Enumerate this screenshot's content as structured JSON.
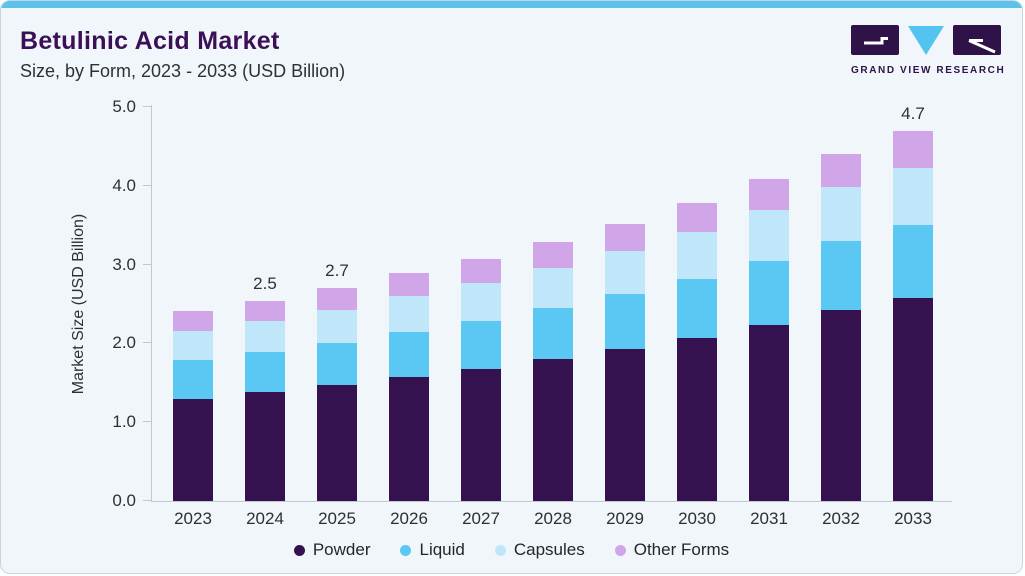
{
  "header": {
    "title": "Betulinic Acid Market",
    "subtitle": "Size, by Form, 2023 - 2033 (USD Billion)",
    "logo_text": "GRAND VIEW RESEARCH"
  },
  "colors": {
    "accent_strip": "#5cc1ec",
    "title_text": "#3b1056",
    "body_text": "#2e3133",
    "card_bg": "#f1f6fa",
    "card_border": "#c5d6e0",
    "axis_line": "#c2c8cf",
    "logo_dark": "#2e1248",
    "logo_blue": "#53c3f0"
  },
  "chart_data": {
    "type": "bar",
    "stacked": true,
    "title": "Betulinic Acid Market Size, by Form, 2023 - 2033 (USD Billion)",
    "categories": [
      "2023",
      "2024",
      "2025",
      "2026",
      "2027",
      "2028",
      "2029",
      "2030",
      "2031",
      "2032",
      "2033"
    ],
    "series": [
      {
        "name": "Powder",
        "color": "#36114f",
        "values": [
          1.3,
          1.38,
          1.47,
          1.57,
          1.68,
          1.8,
          1.93,
          2.07,
          2.24,
          2.42,
          2.58
        ]
      },
      {
        "name": "Liquid",
        "color": "#5ac8f2",
        "values": [
          0.49,
          0.51,
          0.54,
          0.58,
          0.61,
          0.65,
          0.7,
          0.75,
          0.8,
          0.88,
          0.92
        ]
      },
      {
        "name": "Capsules",
        "color": "#bfe7f9",
        "values": [
          0.37,
          0.39,
          0.42,
          0.45,
          0.48,
          0.51,
          0.54,
          0.59,
          0.65,
          0.68,
          0.73
        ]
      },
      {
        "name": "Other Forms",
        "color": "#d0a6e9",
        "values": [
          0.25,
          0.26,
          0.27,
          0.29,
          0.3,
          0.33,
          0.35,
          0.37,
          0.4,
          0.42,
          0.47
        ]
      }
    ],
    "totals": [
      2.41,
      2.54,
      2.7,
      2.89,
      3.07,
      3.29,
      3.52,
      3.78,
      4.09,
      4.4,
      4.7
    ],
    "bar_total_labels": [
      "",
      "2.5",
      "2.7",
      "",
      "",
      "",
      "",
      "",
      "",
      "",
      "4.7"
    ],
    "xlabel": "",
    "ylabel": "Market Size (USD Billion)",
    "ylim": [
      0,
      5
    ],
    "yticks": [
      "0.0",
      "1.0",
      "2.0",
      "3.0",
      "4.0",
      "5.0"
    ],
    "grid": false,
    "legend_position": "bottom"
  }
}
